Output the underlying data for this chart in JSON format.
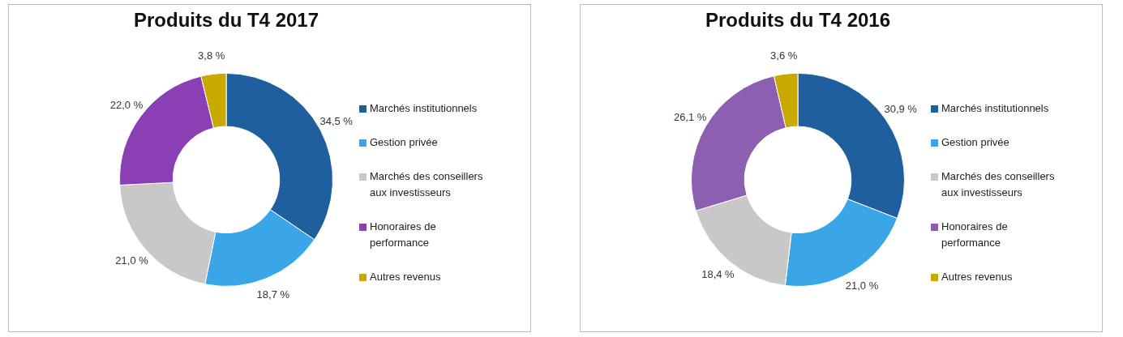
{
  "chart_data": [
    {
      "type": "donut",
      "title": "Produits du T4 2017",
      "categories": [
        "Marchés institutionnels",
        "Gestion privée",
        "Marchés des conseillers aux investisseurs",
        "Honoraires de performance",
        "Autres revenus"
      ],
      "values": [
        34.5,
        18.7,
        21.0,
        22.0,
        3.8
      ],
      "value_labels": [
        "34,5 %",
        "18,7 %",
        "21,0 %",
        "22,0 %",
        "3,8 %"
      ],
      "colors": [
        "#1f5f9e",
        "#3aa6e8",
        "#c8c8c8",
        "#8a3fb5",
        "#c9a800"
      ],
      "legend": "right"
    },
    {
      "type": "donut",
      "title": "Produits du T4 2016",
      "categories": [
        "Marchés institutionnels",
        "Gestion privée",
        "Marchés des conseillers aux investisseurs",
        "Honoraires de performance",
        "Autres revenus"
      ],
      "values": [
        30.9,
        21.0,
        18.4,
        26.1,
        3.6
      ],
      "value_labels": [
        "30,9 %",
        "21,0 %",
        "18,4 %",
        "26,1 %",
        "3,6 %"
      ],
      "colors": [
        "#1f5f9e",
        "#3aa6e8",
        "#c8c8c8",
        "#8c5fb0",
        "#c9a800"
      ],
      "legend": "right"
    }
  ]
}
